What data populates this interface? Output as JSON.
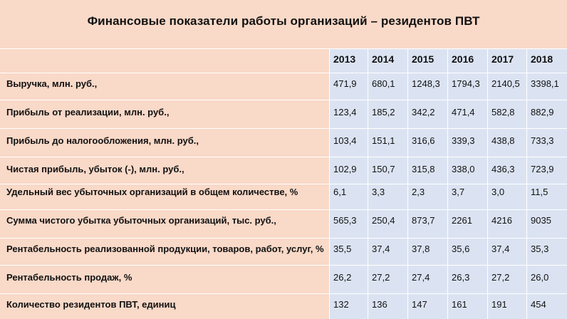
{
  "title": "Финансовые показатели работы организаций – резидентов ПВТ",
  "years": [
    "2013",
    "2014",
    "2015",
    "2016",
    "2017",
    "2018"
  ],
  "rows": [
    {
      "label": "Выручка, млн. руб.,",
      "values": [
        "471,9",
        "680,1",
        "1248,3",
        "1794,3",
        "2140,5",
        "3398,1"
      ]
    },
    {
      "label": "Прибыль от реализации, млн. руб.,",
      "values": [
        "123,4",
        "185,2",
        "342,2",
        "471,4",
        "582,8",
        "882,9"
      ]
    },
    {
      "label": "Прибыль до налогообложения, млн. руб.,",
      "values": [
        "103,4",
        "151,1",
        "316,6",
        "339,3",
        "438,8",
        "733,3"
      ]
    },
    {
      "label": "Чистая прибыль, убыток (-), млн. руб.,",
      "values": [
        "102,9",
        "150,7",
        "315,8",
        "338,0",
        "436,3",
        "723,9"
      ]
    },
    {
      "label": "Удельный вес убыточных организаций в общем количестве, %",
      "values": [
        "6,1",
        "3,3",
        "2,3",
        "3,7",
        "3,0",
        "11,5"
      ]
    },
    {
      "label": "Сумма чистого убытка убыточных организаций, тыс. руб.,",
      "values": [
        "565,3",
        "250,4",
        "873,7",
        "2261",
        "4216",
        "9035"
      ]
    },
    {
      "label": "Рентабельность реализованной продукции, товаров, работ, услуг, %",
      "values": [
        "35,5",
        "37,4",
        "37,8",
        "35,6",
        "37,4",
        "35,3"
      ]
    },
    {
      "label": "Рентабельность продаж, %",
      "values": [
        "26,2",
        "27,2",
        "27,4",
        "26,3",
        "27,2",
        "26,0"
      ]
    },
    {
      "label": "Количество резидентов ПВТ, единиц",
      "values": [
        "132",
        "136",
        "147",
        "161",
        "191",
        "454"
      ]
    }
  ]
}
